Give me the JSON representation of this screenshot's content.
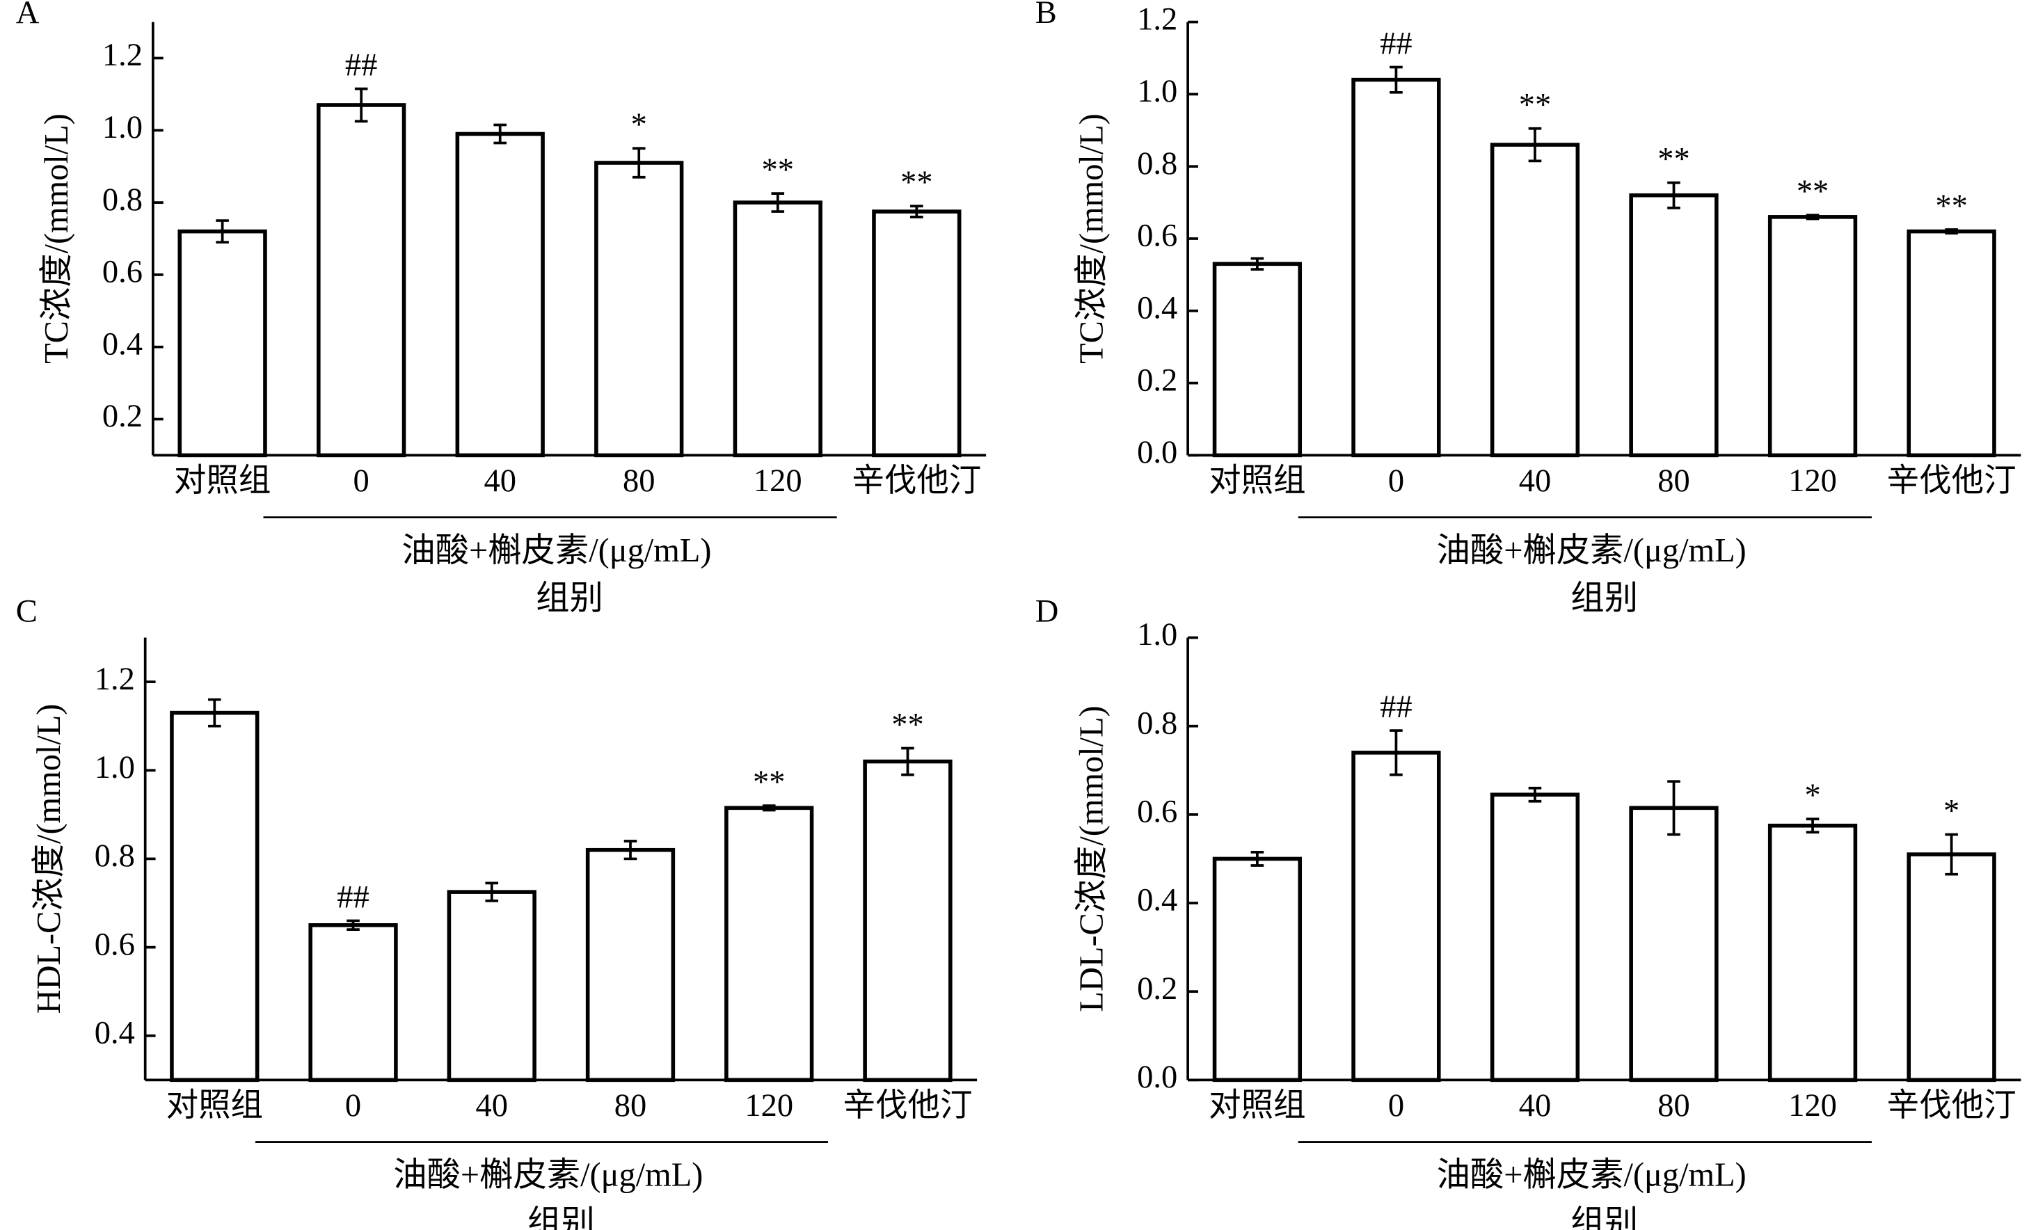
{
  "chart_data": [
    {
      "type": "bar",
      "panel_label": "A",
      "ylabel": "TC浓度/(mmol/L)",
      "xlabel": "组别",
      "group_label": "油酸+槲皮素/(μg/mL)",
      "categories": [
        "对照组",
        "0",
        "40",
        "80",
        "120",
        "辛伐他汀"
      ],
      "values": [
        0.72,
        1.07,
        0.99,
        0.91,
        0.8,
        0.775
      ],
      "errors": [
        0.03,
        0.045,
        0.025,
        0.04,
        0.025,
        0.015
      ],
      "annotations": [
        null,
        "##",
        null,
        "*",
        "**",
        "**"
      ],
      "color": "#ffffff",
      "ylim": [
        0.1,
        1.3
      ],
      "yticks": [
        0.2,
        0.4,
        0.6,
        0.8,
        {
          "value": 1.0,
          "label": "1.0"
        },
        1.2
      ]
    },
    {
      "type": "bar",
      "panel_label": "B",
      "ylabel": "TC浓度/(mmol/L)",
      "xlabel": "组别",
      "group_label": "油酸+槲皮素/(μg/mL)",
      "categories": [
        "对照组",
        "0",
        "40",
        "80",
        "120",
        "辛伐他汀"
      ],
      "values": [
        0.53,
        1.04,
        0.86,
        0.72,
        0.66,
        0.62
      ],
      "errors": [
        0.015,
        0.035,
        0.045,
        0.035,
        0.005,
        0.005
      ],
      "annotations": [
        null,
        "##",
        "**",
        "**",
        "**",
        "**"
      ],
      "color": "#ffffff",
      "ylim": [
        0,
        1.2
      ],
      "yticks": [
        {
          "value": 0,
          "label": "0.0"
        },
        0.2,
        0.4,
        0.6,
        0.8,
        {
          "value": 1.0,
          "label": "1.0"
        },
        1.2
      ]
    },
    {
      "type": "bar",
      "panel_label": "C",
      "ylabel": "HDL-C浓度/(mmol/L)",
      "xlabel": "组别",
      "group_label": "油酸+槲皮素/(μg/mL)",
      "categories": [
        "对照组",
        "0",
        "40",
        "80",
        "120",
        "辛伐他汀"
      ],
      "values": [
        1.13,
        0.65,
        0.725,
        0.82,
        0.915,
        1.02
      ],
      "errors": [
        0.03,
        0.01,
        0.02,
        0.02,
        0.005,
        0.03
      ],
      "annotations": [
        null,
        "##",
        null,
        null,
        "**",
        "**"
      ],
      "color": "#ffffff",
      "ylim": [
        0.3,
        1.3
      ],
      "yticks": [
        0.4,
        0.6,
        0.8,
        {
          "value": 1.0,
          "label": "1.0"
        },
        1.2
      ]
    },
    {
      "type": "bar",
      "panel_label": "D",
      "ylabel": "LDL-C浓度/(mmol/L)",
      "xlabel": "组别",
      "group_label": "油酸+槲皮素/(μg/mL)",
      "categories": [
        "对照组",
        "0",
        "40",
        "80",
        "120",
        "辛伐他汀"
      ],
      "values": [
        0.5,
        0.74,
        0.645,
        0.615,
        0.575,
        0.51
      ],
      "errors": [
        0.015,
        0.05,
        0.015,
        0.06,
        0.015,
        0.045
      ],
      "annotations": [
        null,
        "##",
        null,
        null,
        "*",
        "*"
      ],
      "color": "#ffffff",
      "ylim": [
        0,
        1.0
      ],
      "yticks": [
        {
          "value": 0,
          "label": "0.0"
        },
        0.2,
        0.4,
        0.6,
        0.8,
        {
          "value": 1.0,
          "label": "1.0"
        }
      ]
    }
  ]
}
